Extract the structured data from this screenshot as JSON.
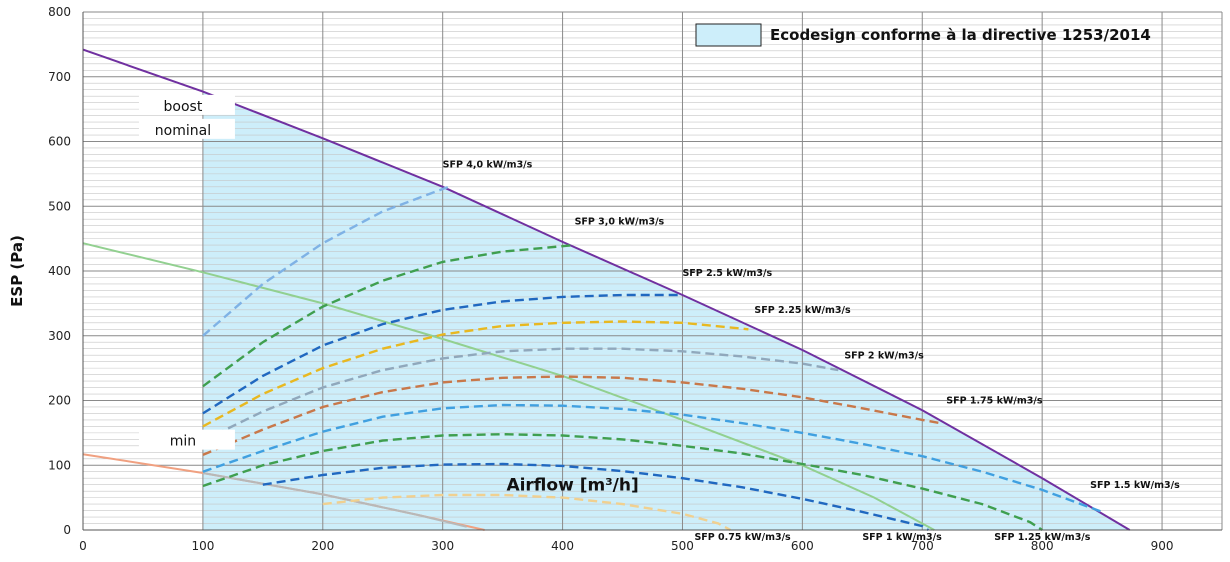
{
  "chart_data": {
    "type": "line",
    "xlabel": "Airflow [m³/h]",
    "ylabel": "ESP (Pa)",
    "xlim": [
      0,
      950
    ],
    "ylim": [
      0,
      800
    ],
    "xticks": [
      0,
      100,
      200,
      300,
      400,
      500,
      600,
      700,
      800,
      900
    ],
    "yticks": [
      0,
      100,
      200,
      300,
      400,
      500,
      600,
      700,
      800
    ],
    "grid": true,
    "legend": {
      "position": "top-right",
      "label": "Ecodesign conforme à la directive 1253/2014",
      "color": "#cdeefa"
    },
    "mode_labels": [
      {
        "text": "boost",
        "x": 50,
        "y": 655
      },
      {
        "text": "nominal",
        "x": 50,
        "y": 618
      },
      {
        "text": "min",
        "x": 50,
        "y": 138
      }
    ],
    "compliance_area": {
      "x_min": 100,
      "color": "#cdeefa"
    },
    "fan_curves": [
      {
        "name": "boost",
        "color": "#7030a0",
        "points": [
          [
            0,
            742
          ],
          [
            100,
            677
          ],
          [
            200,
            605
          ],
          [
            300,
            530
          ],
          [
            400,
            445
          ],
          [
            500,
            363
          ],
          [
            600,
            278
          ],
          [
            700,
            185
          ],
          [
            800,
            80
          ],
          [
            873,
            0
          ]
        ]
      },
      {
        "name": "nominal",
        "color": "#92d090",
        "points": [
          [
            0,
            443
          ],
          [
            100,
            398
          ],
          [
            200,
            350
          ],
          [
            300,
            295
          ],
          [
            400,
            238
          ],
          [
            500,
            170
          ],
          [
            600,
            100
          ],
          [
            660,
            50
          ],
          [
            710,
            0
          ]
        ]
      },
      {
        "name": "min",
        "color": "#f0a080",
        "points": [
          [
            0,
            117
          ],
          [
            100,
            88
          ],
          [
            200,
            55
          ],
          [
            280,
            23
          ],
          [
            335,
            0
          ]
        ]
      },
      {
        "name": "min-alt",
        "color": "#b8b8b8",
        "points": [
          [
            100,
            88
          ],
          [
            200,
            55
          ],
          [
            280,
            23
          ],
          [
            320,
            5
          ]
        ]
      }
    ],
    "sfp_curves": [
      {
        "name": "SFP 4,0 kW/m3/s",
        "color": "#7fb2e5",
        "label_at": [
          300,
          560
        ],
        "points": [
          [
            100,
            300
          ],
          [
            150,
            380
          ],
          [
            200,
            443
          ],
          [
            250,
            492
          ],
          [
            305,
            530
          ]
        ]
      },
      {
        "name": "SFP 3,0 kW/m3/s",
        "color": "#3f9f4f",
        "label_at": [
          410,
          472
        ],
        "points": [
          [
            100,
            222
          ],
          [
            150,
            290
          ],
          [
            200,
            345
          ],
          [
            250,
            385
          ],
          [
            300,
            414
          ],
          [
            350,
            430
          ],
          [
            410,
            440
          ]
        ]
      },
      {
        "name": "SFP 2.5 kW/m3/s",
        "color": "#2068c0",
        "label_at": [
          500,
          392
        ],
        "points": [
          [
            100,
            180
          ],
          [
            150,
            238
          ],
          [
            200,
            285
          ],
          [
            250,
            318
          ],
          [
            300,
            340
          ],
          [
            350,
            353
          ],
          [
            400,
            360
          ],
          [
            450,
            363
          ],
          [
            500,
            363
          ]
        ]
      },
      {
        "name": "SFP 2.25 kW/m3/s",
        "color": "#e8b820",
        "label_at": [
          560,
          335
        ],
        "points": [
          [
            100,
            160
          ],
          [
            150,
            210
          ],
          [
            200,
            250
          ],
          [
            250,
            280
          ],
          [
            300,
            302
          ],
          [
            350,
            315
          ],
          [
            400,
            320
          ],
          [
            450,
            322
          ],
          [
            500,
            320
          ],
          [
            555,
            310
          ]
        ]
      },
      {
        "name": "SFP 2 kW/m3/s",
        "color": "#90a8bc",
        "label_at": [
          635,
          265
        ],
        "points": [
          [
            100,
            138
          ],
          [
            150,
            183
          ],
          [
            200,
            220
          ],
          [
            250,
            247
          ],
          [
            300,
            265
          ],
          [
            350,
            276
          ],
          [
            400,
            280
          ],
          [
            450,
            280
          ],
          [
            500,
            276
          ],
          [
            550,
            268
          ],
          [
            600,
            257
          ],
          [
            630,
            247
          ]
        ]
      },
      {
        "name": "SFP 1.75 kW/m3/s",
        "color": "#c8784a",
        "label_at": [
          720,
          195
        ],
        "points": [
          [
            100,
            116
          ],
          [
            150,
            155
          ],
          [
            200,
            190
          ],
          [
            250,
            213
          ],
          [
            300,
            228
          ],
          [
            350,
            235
          ],
          [
            400,
            237
          ],
          [
            450,
            235
          ],
          [
            500,
            228
          ],
          [
            550,
            218
          ],
          [
            600,
            205
          ],
          [
            650,
            188
          ],
          [
            700,
            170
          ],
          [
            715,
            165
          ]
        ]
      },
      {
        "name": "SFP 1.5 kW/m3/s",
        "color": "#40a0e0",
        "label_at": [
          840,
          65
        ],
        "points": [
          [
            100,
            90
          ],
          [
            150,
            122
          ],
          [
            200,
            152
          ],
          [
            250,
            175
          ],
          [
            300,
            188
          ],
          [
            350,
            193
          ],
          [
            400,
            192
          ],
          [
            450,
            187
          ],
          [
            500,
            178
          ],
          [
            550,
            165
          ],
          [
            600,
            150
          ],
          [
            650,
            133
          ],
          [
            700,
            114
          ],
          [
            750,
            90
          ],
          [
            800,
            62
          ],
          [
            850,
            28
          ]
        ]
      },
      {
        "name": "SFP 1.25 kW/m3/s",
        "color": "#3f9f4f",
        "label_at": [
          760,
          -10
        ],
        "points": [
          [
            100,
            68
          ],
          [
            150,
            100
          ],
          [
            200,
            122
          ],
          [
            250,
            138
          ],
          [
            300,
            146
          ],
          [
            350,
            148
          ],
          [
            400,
            146
          ],
          [
            450,
            140
          ],
          [
            500,
            130
          ],
          [
            550,
            118
          ],
          [
            600,
            102
          ],
          [
            650,
            85
          ],
          [
            700,
            64
          ],
          [
            750,
            40
          ],
          [
            790,
            12
          ],
          [
            800,
            0
          ]
        ]
      },
      {
        "name": "SFP 1 kW/m3/s",
        "color": "#2068c0",
        "label_at": [
          650,
          -10
        ],
        "points": [
          [
            150,
            70
          ],
          [
            200,
            85
          ],
          [
            250,
            96
          ],
          [
            300,
            101
          ],
          [
            350,
            102
          ],
          [
            400,
            99
          ],
          [
            450,
            91
          ],
          [
            500,
            80
          ],
          [
            550,
            66
          ],
          [
            600,
            48
          ],
          [
            650,
            28
          ],
          [
            700,
            6
          ],
          [
            705,
            0
          ]
        ]
      },
      {
        "name": "SFP 0.75 kW/m3/s",
        "color": "#f0d090",
        "label_at": [
          510,
          -10
        ],
        "points": [
          [
            200,
            40
          ],
          [
            250,
            50
          ],
          [
            300,
            54
          ],
          [
            350,
            54
          ],
          [
            400,
            50
          ],
          [
            450,
            40
          ],
          [
            500,
            25
          ],
          [
            530,
            10
          ],
          [
            540,
            0
          ]
        ]
      }
    ]
  }
}
